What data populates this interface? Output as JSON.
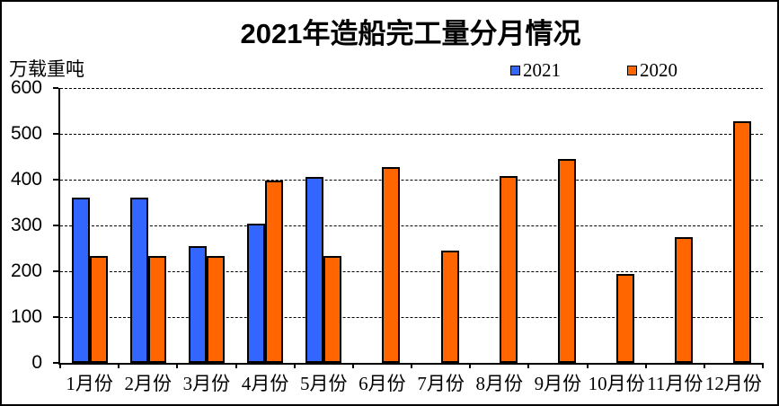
{
  "chart_data": {
    "type": "bar",
    "title": "2021年造船完工量分月情况",
    "unit_label": "万载重吨",
    "xlabel": "",
    "ylabel": "万载重吨",
    "categories": [
      "1月份",
      "2月份",
      "3月份",
      "4月份",
      "5月份",
      "6月份",
      "7月份",
      "8月份",
      "9月份",
      "10月份",
      "11月份",
      "12月份"
    ],
    "series": [
      {
        "name": "2021",
        "color": "#3366FF",
        "values": [
          361,
          361,
          255,
          303,
          406,
          null,
          null,
          null,
          null,
          null,
          null,
          null
        ]
      },
      {
        "name": "2020",
        "color": "#FF6600",
        "values": [
          233,
          233,
          233,
          398,
          233,
          427,
          246,
          407,
          446,
          195,
          275,
          527
        ]
      }
    ],
    "ylim": [
      0,
      600
    ],
    "yticks": [
      600,
      500,
      400,
      300,
      200,
      100,
      0
    ],
    "grid": "horizontal-dashed",
    "legend_position": "top-center",
    "bar_border_color": "#000000",
    "background_color": "#FFFFFF"
  }
}
